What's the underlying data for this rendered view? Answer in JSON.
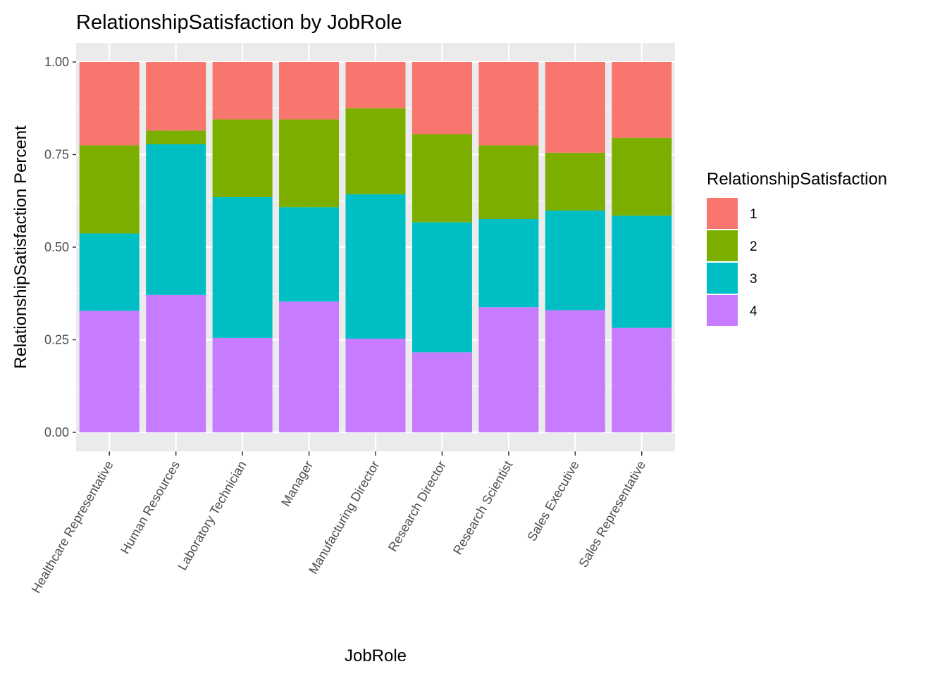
{
  "chart_data": {
    "type": "bar",
    "stacked": "percent",
    "title": "RelationshipSatisfaction by JobRole",
    "xlabel": "JobRole",
    "ylabel": "RelationshipSatisfaction Percent",
    "ylim": [
      0,
      1
    ],
    "y_ticks": [
      "0.00",
      "0.25",
      "0.50",
      "0.75",
      "1.00"
    ],
    "grid": true,
    "legend_title": "RelationshipSatisfaction",
    "legend_position": "right",
    "categories": [
      "Healthcare Representative",
      "Human Resources",
      "Laboratory Technician",
      "Manager",
      "Manufacturing Director",
      "Research Director",
      "Research Scientist",
      "Sales Executive",
      "Sales Representative"
    ],
    "series": [
      {
        "name": "1",
        "color": "#F8766D",
        "values": [
          0.225,
          0.185,
          0.155,
          0.155,
          0.125,
          0.195,
          0.225,
          0.245,
          0.205
        ]
      },
      {
        "name": "2",
        "color": "#7CAE00",
        "values": [
          0.238,
          0.037,
          0.21,
          0.237,
          0.232,
          0.238,
          0.199,
          0.156,
          0.21
        ]
      },
      {
        "name": "3",
        "color": "#00BFC4",
        "values": [
          0.209,
          0.407,
          0.38,
          0.255,
          0.39,
          0.351,
          0.238,
          0.269,
          0.303
        ]
      },
      {
        "name": "4",
        "color": "#C77CFF",
        "values": [
          0.328,
          0.371,
          0.255,
          0.353,
          0.253,
          0.216,
          0.338,
          0.33,
          0.282
        ]
      }
    ]
  }
}
